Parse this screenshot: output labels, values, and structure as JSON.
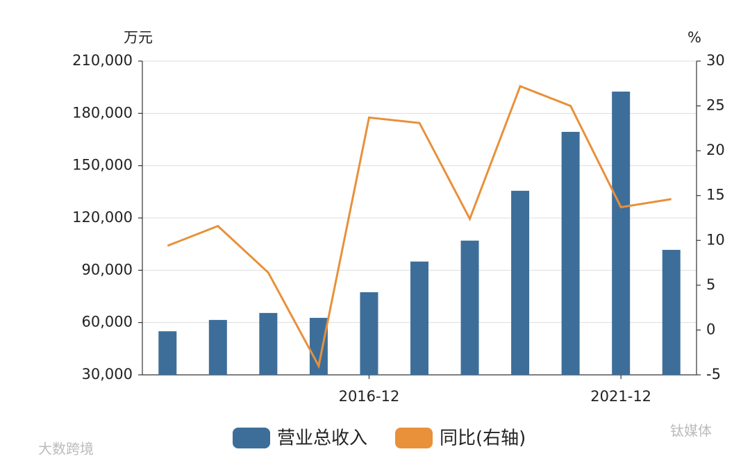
{
  "chart_data": {
    "type": "bar-line",
    "y_unit": "万元",
    "y2_unit": "%",
    "categories": [
      null,
      null,
      null,
      null,
      "2016-12",
      null,
      null,
      null,
      null,
      "2021-12",
      null
    ],
    "series": [
      {
        "name": "营业总收入",
        "type": "bar",
        "color": "#3d6e99",
        "values": [
          55000,
          61500,
          65500,
          62700,
          77400,
          95000,
          107000,
          135600,
          169400,
          192500,
          101700
        ]
      },
      {
        "name": "同比(右轴)",
        "type": "line",
        "axis": "y2",
        "color": "#e8903a",
        "values": [
          9.4,
          11.6,
          6.4,
          -4.0,
          23.7,
          23.1,
          12.4,
          27.2,
          25.0,
          13.7,
          14.6
        ]
      }
    ],
    "ylim": [
      30000,
      210000
    ],
    "yticks": [
      {
        "value": 30000,
        "label": "30,000"
      },
      {
        "value": 60000,
        "label": "60,000"
      },
      {
        "value": 90000,
        "label": "90,000"
      },
      {
        "value": 120000,
        "label": "120,000"
      },
      {
        "value": 150000,
        "label": "150,000"
      },
      {
        "value": 180000,
        "label": "180,000"
      },
      {
        "value": 210000,
        "label": "210,000"
      }
    ],
    "y2lim": [
      -5,
      30
    ],
    "y2ticks": [
      -5,
      0,
      5,
      10,
      15,
      20,
      25,
      30
    ],
    "grid": true,
    "legend": "bottom",
    "watermarks": [
      "大数跨境",
      "钛媒体"
    ]
  }
}
